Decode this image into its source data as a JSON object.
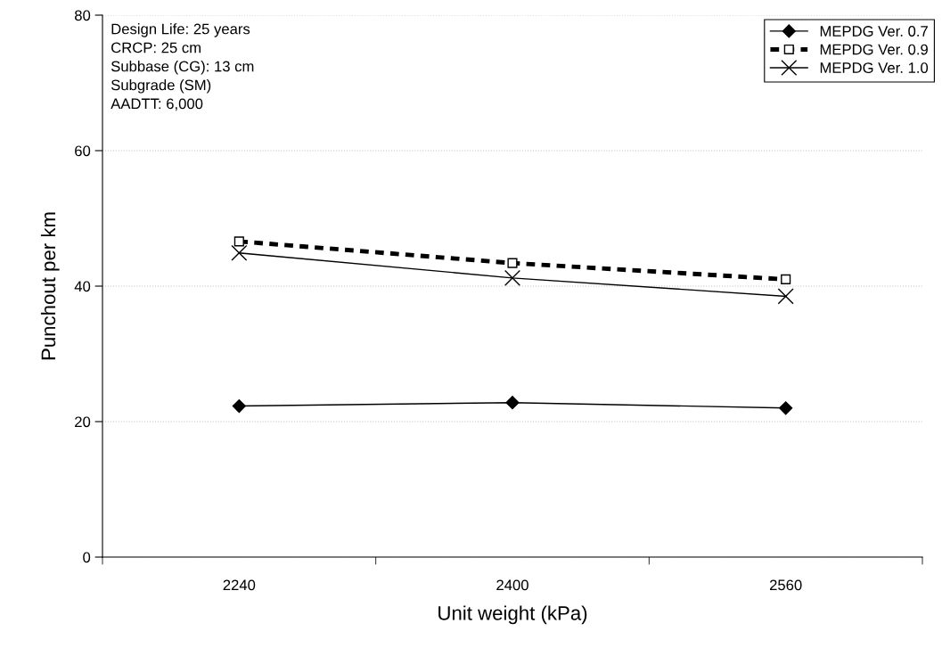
{
  "chart_data": {
    "type": "line",
    "xlabel": "Unit weight (kPa)",
    "ylabel": "Punchout per km",
    "categories": [
      "2240",
      "2400",
      "2560"
    ],
    "series": [
      {
        "name": "MEPDG Ver. 0.7",
        "color": "#000000",
        "values": [
          22.3,
          22.8,
          22.0
        ],
        "marker": "diamond",
        "line_style": "solid"
      },
      {
        "name": "MEPDG Ver. 0.9",
        "color": "#000000",
        "values": [
          46.6,
          43.4,
          41.0
        ],
        "marker": "square",
        "line_style": "dashed"
      },
      {
        "name": "MEPDG Ver. 1.0",
        "color": "#000000",
        "values": [
          44.9,
          41.2,
          38.5
        ],
        "marker": "cross",
        "line_style": "solid"
      }
    ],
    "ylim": [
      0,
      80
    ],
    "yticks": [
      0,
      20,
      40,
      60,
      80
    ],
    "grid": "y",
    "legend": "top right",
    "annotations": [
      "Design Life: 25 years\nCRCP: 25 cm\nSubbase (CG): 13 cm\nSubgrade (SM)\nAADTT: 6,000"
    ]
  }
}
